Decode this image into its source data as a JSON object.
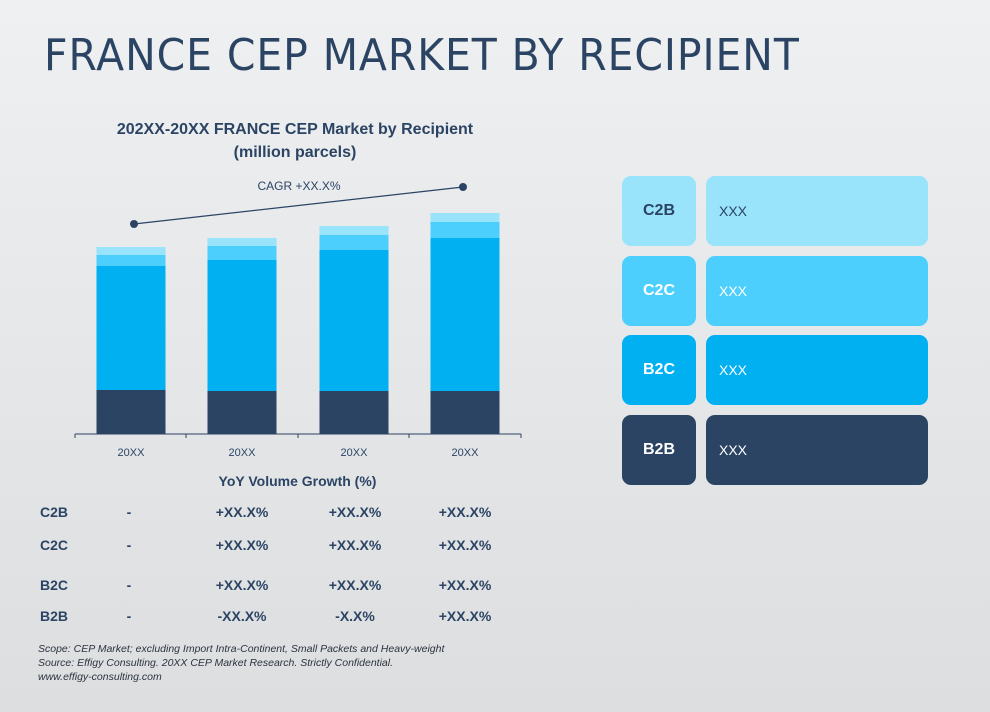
{
  "title": "FRANCE CEP MARKET BY RECIPIENT",
  "chart_data": {
    "type": "bar",
    "stacked": true,
    "title": "202XX-20XX FRANCE CEP Market by Recipient",
    "subtitle": "(million parcels)",
    "categories": [
      "20XX",
      "20XX",
      "20XX",
      "20XX"
    ],
    "series": [
      {
        "name": "B2B",
        "color": "#2c4464",
        "values": [
          44,
          43,
          43,
          43
        ]
      },
      {
        "name": "B2C",
        "color": "#00b0f0",
        "values": [
          124,
          131,
          141,
          153
        ]
      },
      {
        "name": "C2C",
        "color": "#4dcffd",
        "values": [
          11,
          14,
          15,
          16
        ]
      },
      {
        "name": "C2B",
        "color": "#99e3fb",
        "values": [
          8,
          8,
          9,
          9
        ]
      }
    ],
    "ylim": [
      0,
      230
    ],
    "grid": false,
    "annotation": "CAGR +XX.X%",
    "note": "values are relative bar heights; no y-axis shown"
  },
  "legend": [
    {
      "label": "C2B",
      "value": "XXX",
      "color": "#99e3fb",
      "text": "#2c4464"
    },
    {
      "label": "C2C",
      "value": "XXX",
      "color": "#4dcffd",
      "text": "#ffffff"
    },
    {
      "label": "B2C",
      "value": "XXX",
      "color": "#00b0f0",
      "text": "#ffffff"
    },
    {
      "label": "B2B",
      "value": "XXX",
      "color": "#2c4464",
      "text": "#ffffff"
    }
  ],
  "yoy": {
    "title": "YoY Volume Growth (%)",
    "rows": [
      {
        "label": "C2B",
        "values": [
          "-",
          "+XX.X%",
          "+XX.X%",
          "+XX.X%"
        ]
      },
      {
        "label": "C2C",
        "values": [
          "-",
          "+XX.X%",
          "+XX.X%",
          "+XX.X%"
        ]
      },
      {
        "label": "B2C",
        "values": [
          "-",
          "+XX.X%",
          "+XX.X%",
          "+XX.X%"
        ]
      },
      {
        "label": "B2B",
        "values": [
          "-",
          "-XX.X%",
          "-X.X%",
          "+XX.X%"
        ]
      }
    ]
  },
  "footer": [
    "Scope: CEP Market; excluding Import Intra-Continent, Small Packets and Heavy-weight",
    "Source: Effigy Consulting. 20XX CEP Market Research. Strictly Confidential.",
    "www.effigy-consulting.com"
  ]
}
